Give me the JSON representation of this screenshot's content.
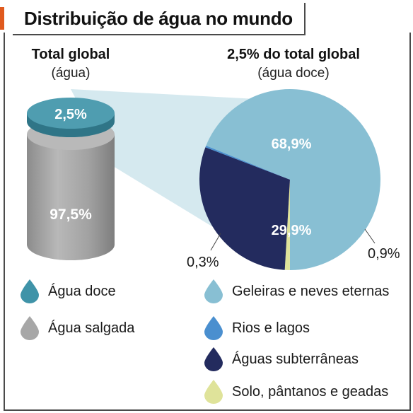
{
  "title": "Distribuição de água no mundo",
  "colors": {
    "accent": "#e05a1e",
    "agua_doce": "#3f93a8",
    "agua_salgada": "#a7a7a7",
    "geleiras": "#88bfd3",
    "rios": "#4a8fcf",
    "subterraneas": "#232b5e",
    "solo": "#dfe39a"
  },
  "chart_data": [
    {
      "type": "cylinder",
      "title": "Total global",
      "subtitle": "(água)",
      "series": [
        {
          "name": "Água doce",
          "value": 2.5,
          "label": "2,5%"
        },
        {
          "name": "Água salgada",
          "value": 97.5,
          "label": "97,5%"
        }
      ]
    },
    {
      "type": "pie",
      "title": "2,5% do total global",
      "subtitle": "(água doce)",
      "slices": [
        {
          "name": "Geleiras e neves eternas",
          "value": 68.9,
          "label": "68,9%"
        },
        {
          "name": "Solo, pântanos e geadas",
          "value": 0.9,
          "label": "0,9%"
        },
        {
          "name": "Águas subterrâneas",
          "value": 29.9,
          "label": "29,9%"
        },
        {
          "name": "Rios e lagos",
          "value": 0.3,
          "label": "0,3%"
        }
      ]
    }
  ],
  "legend": [
    {
      "label": "Água doce",
      "color": "#3f93a8"
    },
    {
      "label": "Água salgada",
      "color": "#a7a7a7"
    },
    {
      "label": "Geleiras e neves eternas",
      "color": "#88bfd3"
    },
    {
      "label": "Rios e lagos",
      "color": "#4a8fcf"
    },
    {
      "label": "Águas subterrâneas",
      "color": "#232b5e"
    },
    {
      "label": "Solo, pântanos e geadas",
      "color": "#dfe39a"
    }
  ]
}
